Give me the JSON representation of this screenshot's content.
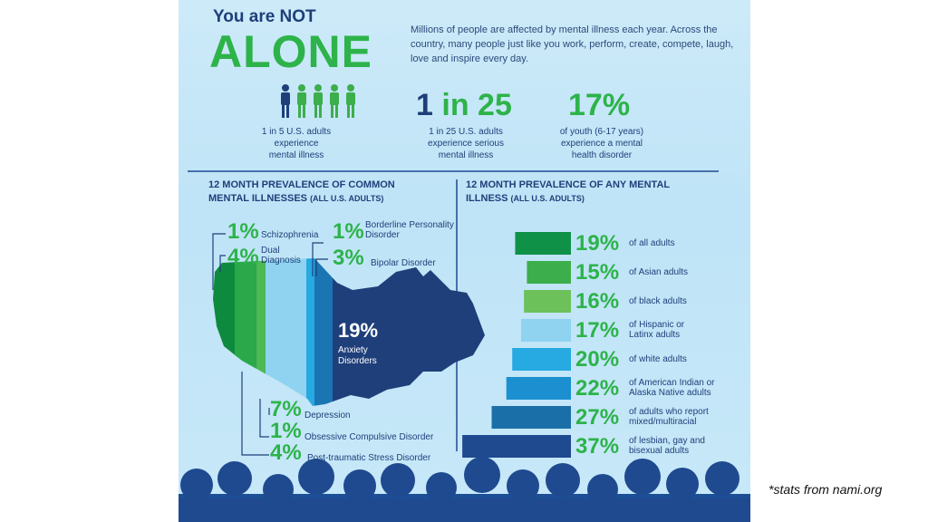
{
  "header": {
    "title_small": "You are NOT",
    "title_big": "ALONE",
    "intro": "Millions of people are affected by mental illness each year. Across the country, many people just like you work, perform, create, compete, laugh, love and inspire every day."
  },
  "stats": [
    {
      "big": "",
      "caption": [
        "1 in 5 U.S. adults",
        "experience",
        "mental illness"
      ]
    },
    {
      "big_a": "1",
      "big_b": "in 25",
      "caption": [
        "1 in 25 U.S. adults",
        "experience serious",
        "mental illness"
      ]
    },
    {
      "big": "17%",
      "caption": [
        "of youth (6-17 years)",
        "experience a mental",
        "health disorder"
      ]
    }
  ],
  "left_section": {
    "title_line1": "12 MONTH PREVALENCE OF COMMON",
    "title_line2": "MENTAL ILLNESSES",
    "title_sub": "(ALL U.S. ADULTS)"
  },
  "right_section": {
    "title_line1": "12 MONTH PREVALENCE OF ANY MENTAL",
    "title_line2": "ILLNESS",
    "title_sub": "(ALL U.S. ADULTS)"
  },
  "chart_data": [
    {
      "type": "map-bands",
      "title": "12 MONTH PREVALENCE OF COMMON MENTAL ILLNESSES (ALL U.S. ADULTS)",
      "categories": [
        "Schizophrenia",
        "Dual Diagnosis",
        "Post-traumatic Stress Disorder",
        "Obsessive Compulsive Disorder",
        "Depression",
        "Borderline Personality Disorder",
        "Bipolar Disorder",
        "Anxiety Disorders"
      ],
      "labels": [
        "1%",
        "4%",
        "4%",
        "1%",
        "7%",
        "1%",
        "3%",
        "19%"
      ],
      "values": [
        1,
        4,
        4,
        1,
        7,
        1,
        3,
        19
      ],
      "colors": [
        "#0e8a3e",
        "#2aa84a",
        "#4cb954",
        "#8fd16a",
        "#8fd3f0",
        "#27a9e1",
        "#1b75b3",
        "#1f3f7a"
      ]
    },
    {
      "type": "bar",
      "orientation": "horizontal",
      "title": "12 MONTH PREVALENCE OF ANY MENTAL ILLNESS (ALL U.S. ADULTS)",
      "labels": [
        "19%",
        "15%",
        "16%",
        "17%",
        "20%",
        "22%",
        "27%",
        "37%"
      ],
      "categories": [
        "of all adults",
        "of Asian adults",
        "of black adults",
        "of Hispanic or Latinx adults",
        "of white adults",
        "of American Indian or Alaska Native adults",
        "of adults who report mixed/multiracial",
        "of lesbian, gay and bisexual adults"
      ],
      "category_lines": [
        [
          "of all adults"
        ],
        [
          "of Asian adults"
        ],
        [
          "of black adults"
        ],
        [
          "of Hispanic or",
          "Latinx adults"
        ],
        [
          "of white adults"
        ],
        [
          "of American Indian or",
          "Alaska Native adults"
        ],
        [
          "of adults who report",
          "mixed/multiracial"
        ],
        [
          "of lesbian, gay and",
          "bisexual adults"
        ]
      ],
      "values": [
        19,
        15,
        16,
        17,
        20,
        22,
        27,
        37
      ],
      "colors": [
        "#0f9148",
        "#3cae4b",
        "#6cc15a",
        "#8fd3f0",
        "#27a9e1",
        "#1b8fd0",
        "#1b6fa8",
        "#1f4a90"
      ]
    }
  ],
  "attribution": "*stats from nami.org"
}
